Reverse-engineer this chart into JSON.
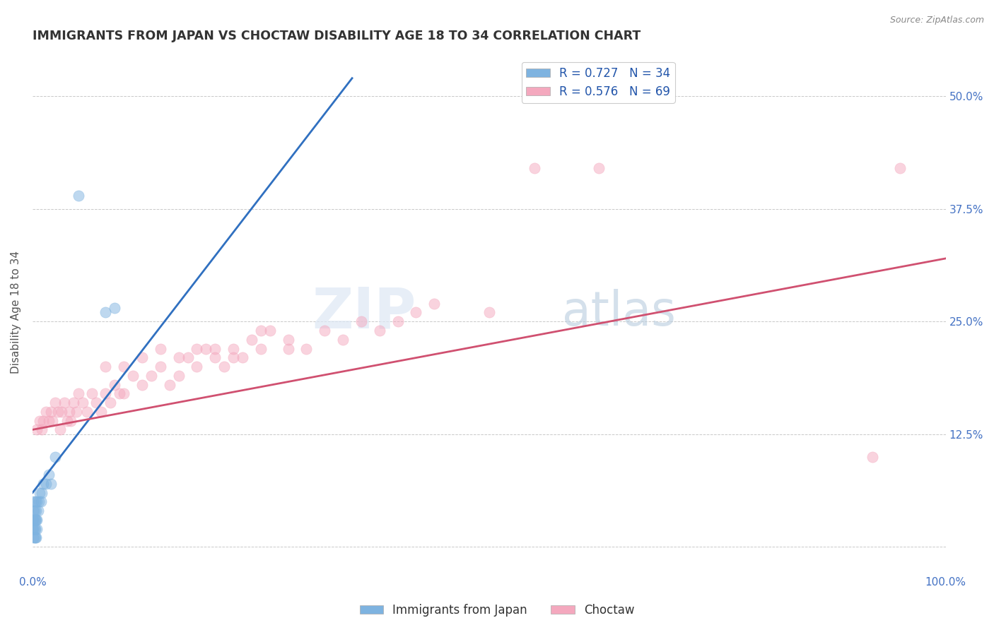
{
  "title": "IMMIGRANTS FROM JAPAN VS CHOCTAW DISABILITY AGE 18 TO 34 CORRELATION CHART",
  "source": "Source: ZipAtlas.com",
  "ylabel": "Disability Age 18 to 34",
  "xlim": [
    0.0,
    1.0
  ],
  "ylim": [
    -0.03,
    0.55
  ],
  "x_ticks": [
    0.0,
    0.125,
    0.25,
    0.375,
    0.5,
    0.625,
    0.75,
    0.875,
    1.0
  ],
  "x_tick_labels": [
    "0.0%",
    "",
    "",
    "",
    "",
    "",
    "",
    "",
    "100.0%"
  ],
  "y_ticks": [
    0.0,
    0.125,
    0.25,
    0.375,
    0.5
  ],
  "y_tick_labels": [
    "",
    "12.5%",
    "25.0%",
    "37.5%",
    "50.0%"
  ],
  "legend_r_entries": [
    {
      "label": "R = 0.727   N = 34",
      "color": "#aac4e8"
    },
    {
      "label": "R = 0.576   N = 69",
      "color": "#f4b8c8"
    }
  ],
  "bottom_legend": [
    "Immigrants from Japan",
    "Choctaw"
  ],
  "watermark": "ZIPatlas",
  "background_color": "#ffffff",
  "grid_color": "#bbbbbb",
  "title_color": "#333333",
  "tick_label_color": "#4472c4",
  "ylabel_color": "#555555",
  "japan_scatter_x": [
    0.0,
    0.0,
    0.001,
    0.001,
    0.001,
    0.001,
    0.001,
    0.002,
    0.002,
    0.002,
    0.002,
    0.003,
    0.003,
    0.003,
    0.003,
    0.004,
    0.004,
    0.004,
    0.005,
    0.005,
    0.005,
    0.006,
    0.007,
    0.008,
    0.009,
    0.01,
    0.012,
    0.015,
    0.018,
    0.02,
    0.025,
    0.05,
    0.08,
    0.09
  ],
  "japan_scatter_y": [
    0.02,
    0.03,
    0.01,
    0.02,
    0.03,
    0.04,
    0.05,
    0.01,
    0.02,
    0.03,
    0.04,
    0.01,
    0.02,
    0.03,
    0.05,
    0.01,
    0.03,
    0.04,
    0.02,
    0.03,
    0.05,
    0.04,
    0.05,
    0.06,
    0.05,
    0.06,
    0.07,
    0.07,
    0.08,
    0.07,
    0.1,
    0.39,
    0.26,
    0.265
  ],
  "choctaw_scatter_x": [
    0.005,
    0.008,
    0.01,
    0.012,
    0.015,
    0.018,
    0.02,
    0.022,
    0.025,
    0.028,
    0.03,
    0.032,
    0.035,
    0.038,
    0.04,
    0.042,
    0.045,
    0.048,
    0.05,
    0.055,
    0.06,
    0.065,
    0.07,
    0.075,
    0.08,
    0.085,
    0.09,
    0.095,
    0.1,
    0.11,
    0.12,
    0.13,
    0.14,
    0.15,
    0.16,
    0.17,
    0.18,
    0.19,
    0.2,
    0.21,
    0.22,
    0.23,
    0.24,
    0.25,
    0.26,
    0.28,
    0.3,
    0.32,
    0.34,
    0.36,
    0.38,
    0.4,
    0.42,
    0.44,
    0.08,
    0.1,
    0.12,
    0.14,
    0.16,
    0.18,
    0.2,
    0.22,
    0.25,
    0.28,
    0.5,
    0.55,
    0.62,
    0.95,
    0.92
  ],
  "choctaw_scatter_y": [
    0.13,
    0.14,
    0.13,
    0.14,
    0.15,
    0.14,
    0.15,
    0.14,
    0.16,
    0.15,
    0.13,
    0.15,
    0.16,
    0.14,
    0.15,
    0.14,
    0.16,
    0.15,
    0.17,
    0.16,
    0.15,
    0.17,
    0.16,
    0.15,
    0.17,
    0.16,
    0.18,
    0.17,
    0.17,
    0.19,
    0.18,
    0.19,
    0.2,
    0.18,
    0.19,
    0.21,
    0.2,
    0.22,
    0.21,
    0.2,
    0.22,
    0.21,
    0.23,
    0.22,
    0.24,
    0.23,
    0.22,
    0.24,
    0.23,
    0.25,
    0.24,
    0.25,
    0.26,
    0.27,
    0.2,
    0.2,
    0.21,
    0.22,
    0.21,
    0.22,
    0.22,
    0.21,
    0.24,
    0.22,
    0.26,
    0.42,
    0.42,
    0.42,
    0.1
  ],
  "japan_line_x": [
    0.0,
    0.35
  ],
  "japan_line_y": [
    0.06,
    0.52
  ],
  "choctaw_line_x": [
    0.0,
    1.0
  ],
  "choctaw_line_y": [
    0.13,
    0.32
  ],
  "japan_color": "#7eb3e0",
  "choctaw_color": "#f4a8be",
  "japan_line_color": "#3070c0",
  "choctaw_line_color": "#d05070",
  "scatter_alpha": 0.5,
  "marker_size": 120,
  "title_fontsize": 12.5,
  "axis_label_fontsize": 11,
  "tick_fontsize": 11,
  "legend_fontsize": 12
}
